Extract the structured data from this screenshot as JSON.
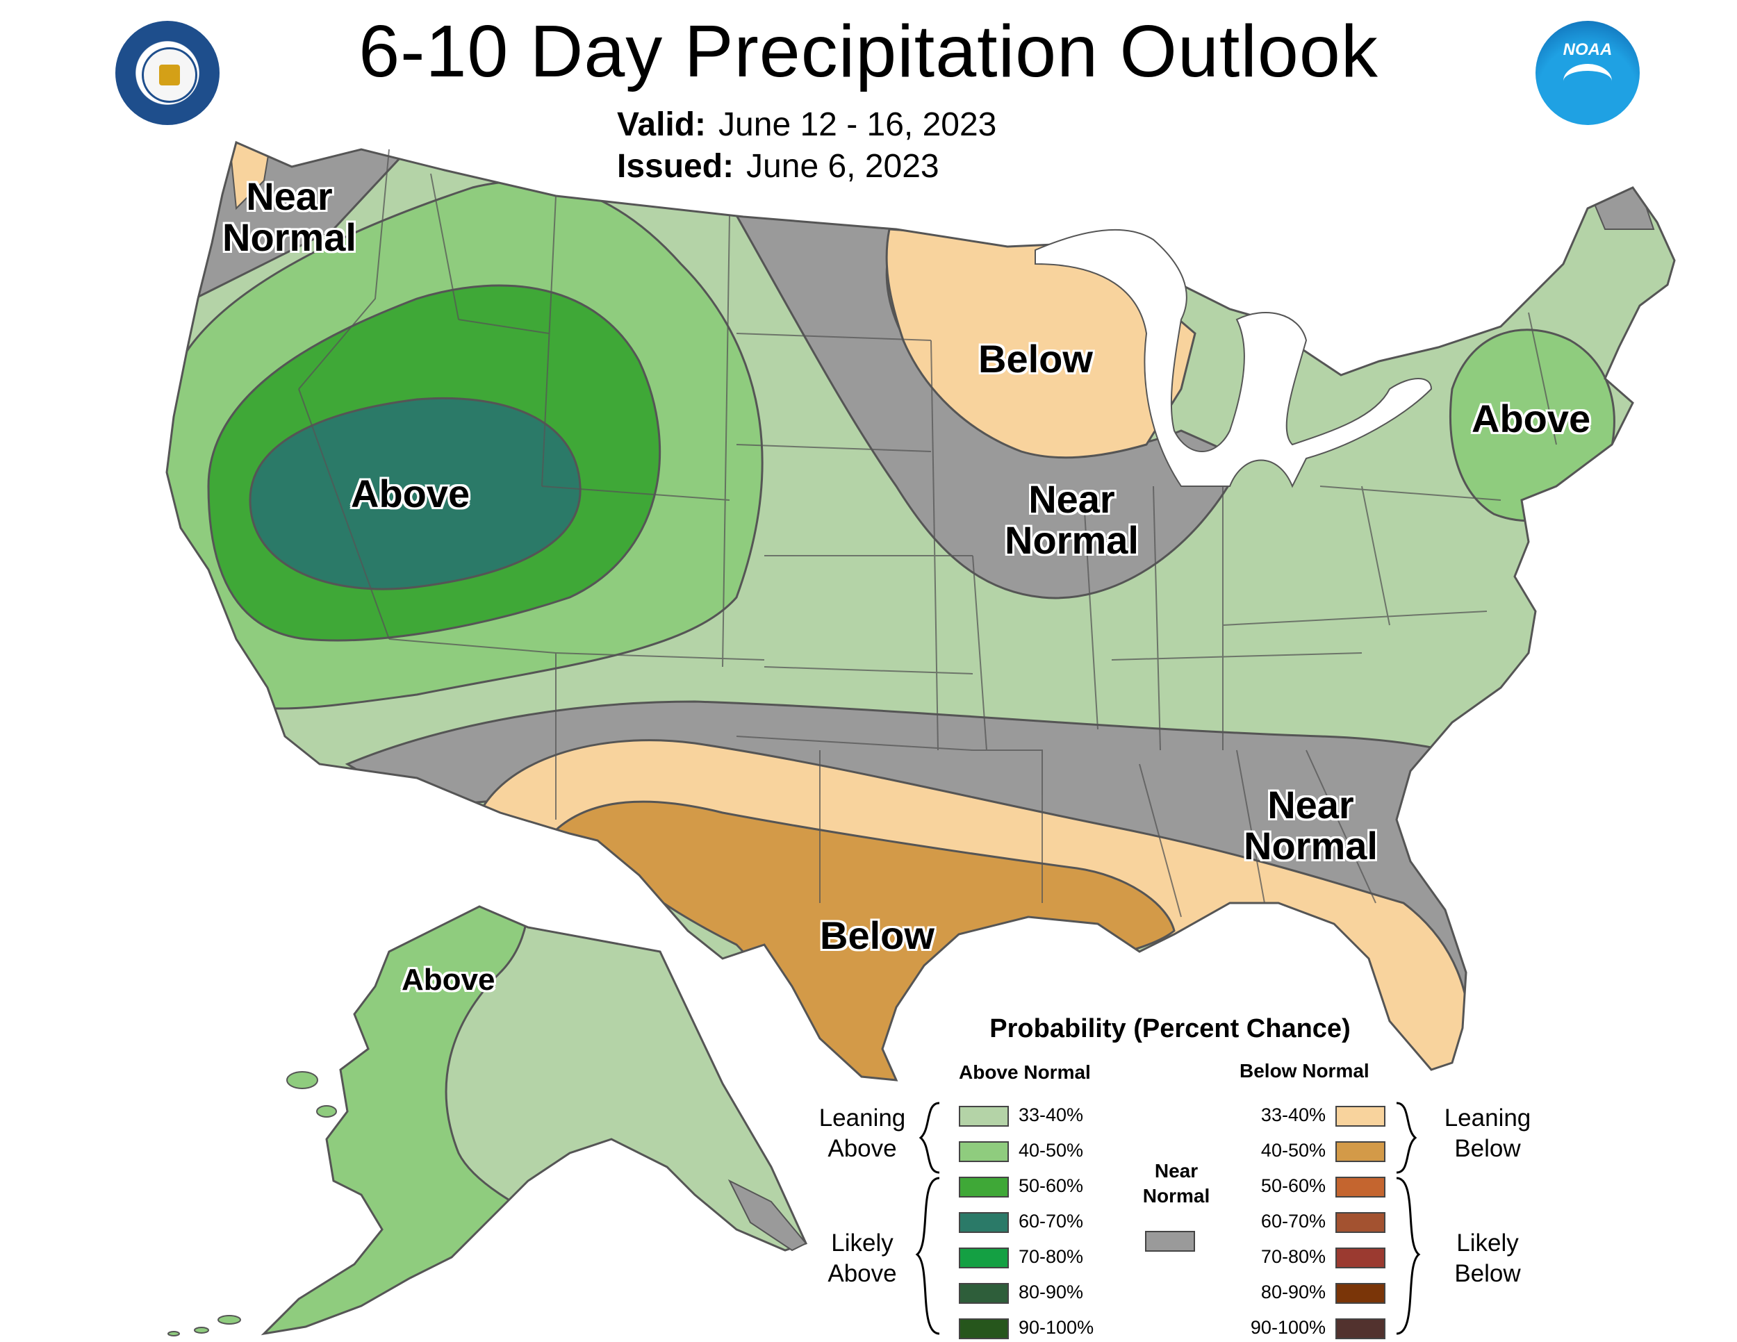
{
  "title": "6-10 Day Precipitation Outlook",
  "valid": {
    "label": "Valid:",
    "value": "June 12 - 16, 2023"
  },
  "issued": {
    "label": "Issued:",
    "value": "June 6, 2023"
  },
  "logos": {
    "left": "doc-seal-icon",
    "right": "noaa-logo-icon",
    "noaa_text": "NOAA"
  },
  "colors": {
    "above_33_40": "#b4d3a7",
    "above_40_50": "#8fcc7e",
    "above_50_60": "#3fa837",
    "above_60_70": "#2b7a68",
    "above_70_80": "#14a043",
    "above_80_90": "#2e5e3a",
    "above_90_100": "#26561c",
    "below_33_40": "#f8d39d",
    "below_40_50": "#d39a48",
    "below_50_60": "#c4652f",
    "below_60_70": "#a35230",
    "below_70_80": "#9b3a30",
    "below_80_90": "#7a3508",
    "below_90_100": "#52322e",
    "near_normal": "#9a9a9a",
    "water": "#ffffff",
    "boundary": "#555555"
  },
  "map_labels": [
    {
      "text": "Near\nNormal",
      "category": "near_normal"
    },
    {
      "text": "Above",
      "category": "above"
    },
    {
      "text": "Below",
      "category": "below"
    },
    {
      "text": "Near\nNormal",
      "category": "near_normal"
    },
    {
      "text": "Above",
      "category": "above"
    },
    {
      "text": "Near\nNormal",
      "category": "near_normal"
    },
    {
      "text": "Below",
      "category": "below"
    },
    {
      "text": "Above",
      "category": "above"
    }
  ],
  "legend": {
    "title": "Probability (Percent Chance)",
    "above_header": "Above Normal",
    "below_header": "Below Normal",
    "near_header": "Near\nNormal",
    "leaning_above": "Leaning\nAbove",
    "likely_above": "Likely\nAbove",
    "leaning_below": "Leaning\nBelow",
    "likely_below": "Likely\nBelow",
    "above_items": [
      {
        "label": "33-40%",
        "color": "#b4d3a7"
      },
      {
        "label": "40-50%",
        "color": "#8fcc7e"
      },
      {
        "label": "50-60%",
        "color": "#3fa837"
      },
      {
        "label": "60-70%",
        "color": "#2b7a68"
      },
      {
        "label": "70-80%",
        "color": "#14a043"
      },
      {
        "label": "80-90%",
        "color": "#2e5e3a"
      },
      {
        "label": "90-100%",
        "color": "#26561c"
      }
    ],
    "below_items": [
      {
        "label": "33-40%",
        "color": "#f8d39d"
      },
      {
        "label": "40-50%",
        "color": "#d39a48"
      },
      {
        "label": "50-60%",
        "color": "#c4652f"
      },
      {
        "label": "60-70%",
        "color": "#a35230"
      },
      {
        "label": "70-80%",
        "color": "#9b3a30"
      },
      {
        "label": "80-90%",
        "color": "#7a3508"
      },
      {
        "label": "90-100%",
        "color": "#52322e"
      }
    ],
    "near_color": "#9a9a9a"
  }
}
